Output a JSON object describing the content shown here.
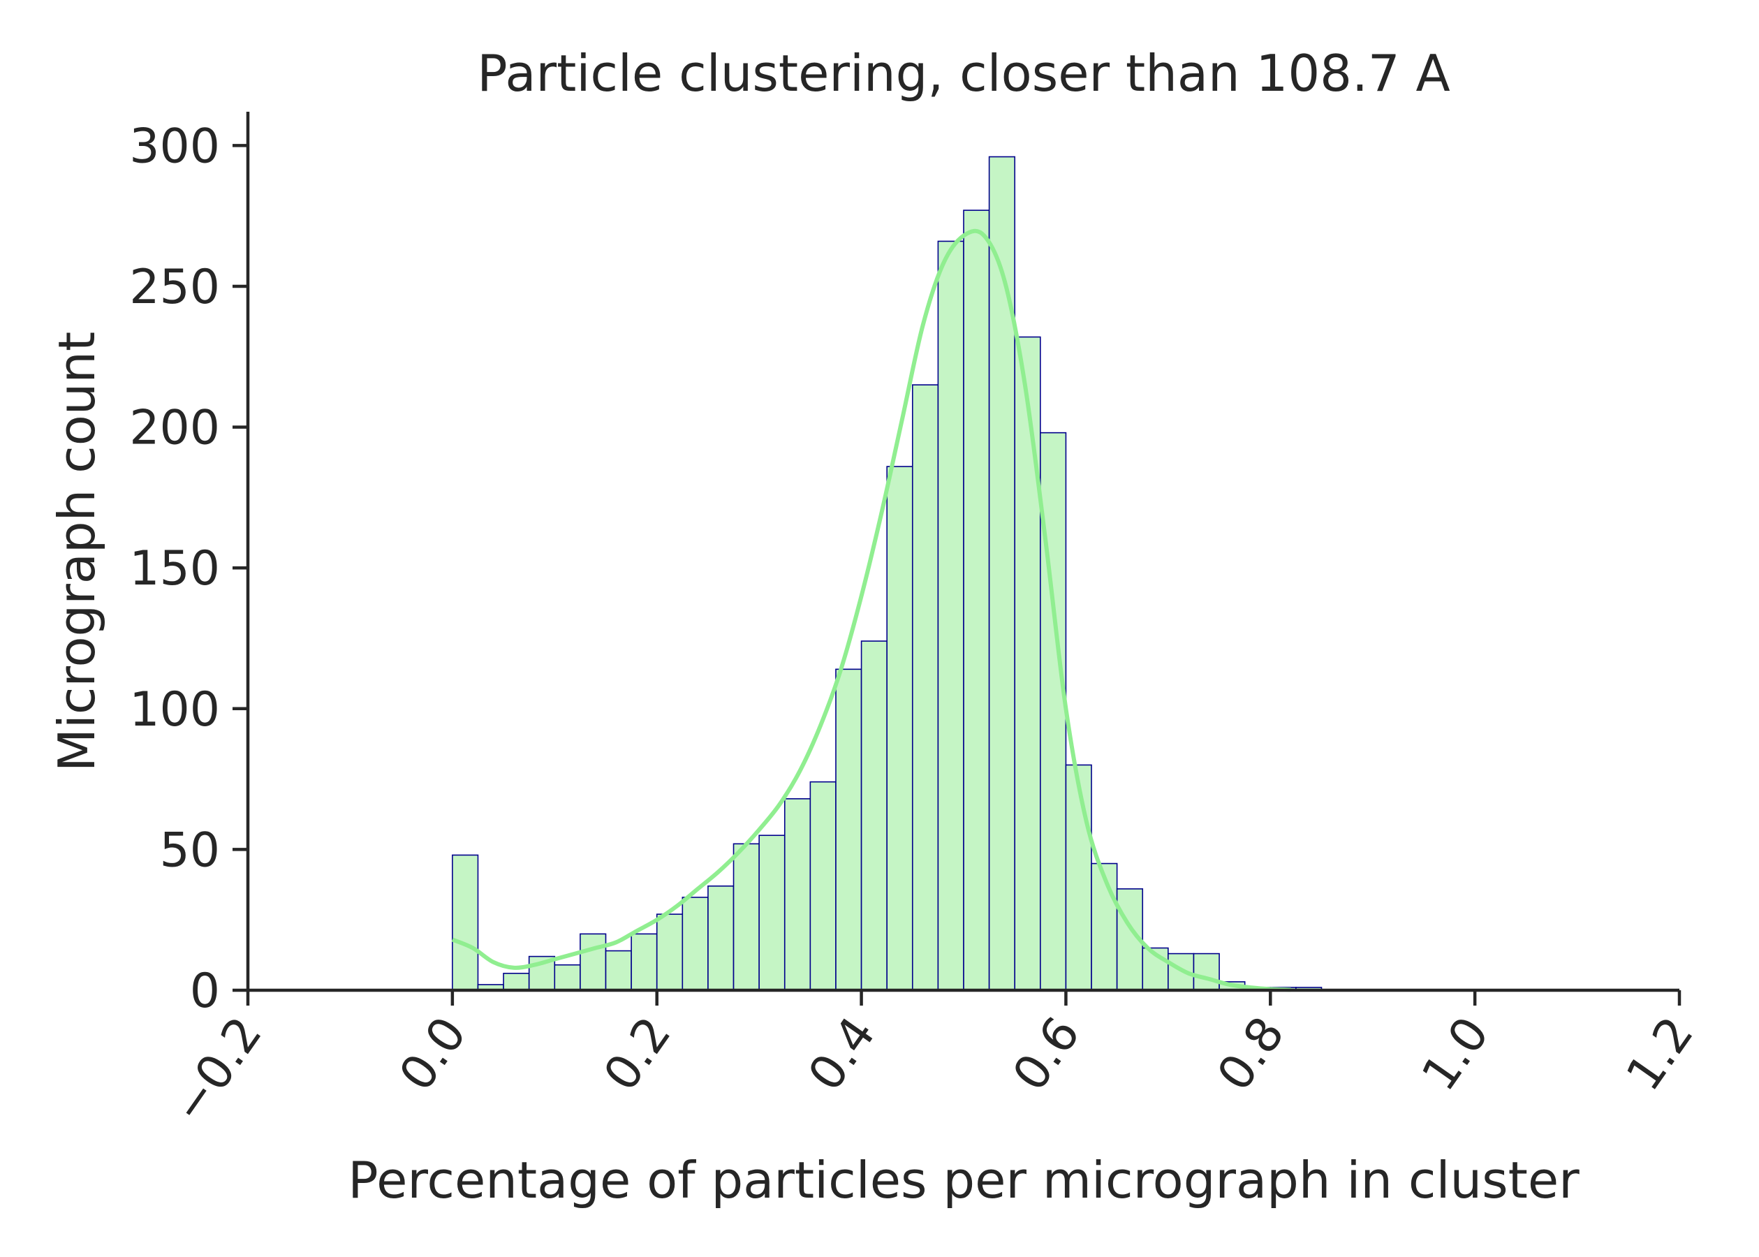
{
  "chart_data": {
    "type": "bar",
    "title": "Particle clustering, closer than 108.7 A",
    "xlabel": "Percentage of particles per micrograph in cluster",
    "ylabel": "Micrograph count",
    "xlim": [
      -0.2,
      1.2
    ],
    "ylim": [
      0,
      312
    ],
    "xticks": [
      -0.2,
      0.0,
      0.2,
      0.4,
      0.6,
      0.8,
      1.0,
      1.2
    ],
    "xtick_labels": [
      "−0.2",
      "0.0",
      "0.2",
      "0.4",
      "0.6",
      "0.8",
      "1.0",
      "1.2"
    ],
    "yticks": [
      0,
      50,
      100,
      150,
      200,
      250,
      300
    ],
    "ytick_labels": [
      "0",
      "50",
      "100",
      "150",
      "200",
      "250",
      "300"
    ],
    "grid": false,
    "bin_start": 0.0,
    "bin_width": 0.025,
    "counts": [
      48,
      2,
      6,
      12,
      9,
      20,
      14,
      20,
      27,
      33,
      37,
      52,
      55,
      68,
      74,
      114,
      124,
      186,
      215,
      266,
      277,
      296,
      232,
      198,
      80,
      45,
      36,
      15,
      13,
      13,
      3,
      1,
      1,
      1
    ],
    "kde": {
      "x": [
        0.0,
        0.02,
        0.04,
        0.06,
        0.08,
        0.1,
        0.12,
        0.14,
        0.16,
        0.18,
        0.2,
        0.22,
        0.24,
        0.26,
        0.28,
        0.3,
        0.32,
        0.34,
        0.36,
        0.38,
        0.4,
        0.42,
        0.44,
        0.46,
        0.48,
        0.5,
        0.52,
        0.54,
        0.56,
        0.58,
        0.6,
        0.62,
        0.64,
        0.66,
        0.68,
        0.7,
        0.72,
        0.74,
        0.76,
        0.78,
        0.8,
        0.82
      ],
      "y": [
        18,
        15,
        10,
        8,
        9,
        11,
        13,
        15,
        17,
        21,
        25,
        30,
        36,
        42,
        49,
        57,
        66,
        78,
        94,
        114,
        140,
        170,
        203,
        236,
        258,
        268,
        268,
        252,
        215,
        160,
        100,
        60,
        38,
        24,
        15,
        10,
        6,
        4,
        2,
        1,
        0.4,
        0.2
      ]
    },
    "bar_fill": "#c5f5c5",
    "bar_edge": "#00008b",
    "kde_color": "#90ee90",
    "axis_color": "#262626"
  }
}
